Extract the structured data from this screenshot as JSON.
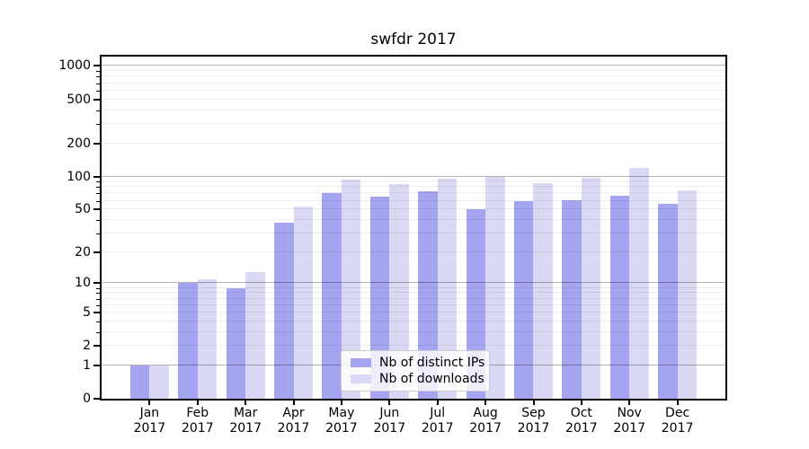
{
  "figure": {
    "title": "swfdr 2017",
    "background_color": "#ffffff"
  },
  "chart_data": {
    "type": "bar",
    "title": "swfdr 2017",
    "categories": [
      {
        "label": "Jan",
        "year": "2017"
      },
      {
        "label": "Feb",
        "year": "2017"
      },
      {
        "label": "Mar",
        "year": "2017"
      },
      {
        "label": "Apr",
        "year": "2017"
      },
      {
        "label": "May",
        "year": "2017"
      },
      {
        "label": "Jun",
        "year": "2017"
      },
      {
        "label": "Jul",
        "year": "2017"
      },
      {
        "label": "Aug",
        "year": "2017"
      },
      {
        "label": "Sep",
        "year": "2017"
      },
      {
        "label": "Oct",
        "year": "2017"
      },
      {
        "label": "Nov",
        "year": "2017"
      },
      {
        "label": "Dec",
        "year": "2017"
      }
    ],
    "series": [
      {
        "name": "Nb of distinct IPs",
        "color": "#a4a4f1",
        "values": [
          1,
          10,
          9,
          38,
          70,
          65,
          73,
          50,
          60,
          61,
          67,
          56
        ]
      },
      {
        "name": "Nb of downloads",
        "color": "#d9d9f6",
        "values": [
          1,
          11,
          13,
          53,
          93,
          85,
          95,
          100,
          87,
          97,
          119,
          75
        ]
      }
    ],
    "yscale": "log10(value+1)",
    "ylim_approx": [
      0,
      1250
    ],
    "yticks": [
      0,
      1,
      2,
      5,
      10,
      20,
      50,
      100,
      200,
      500,
      1000
    ],
    "grid": {
      "on": true,
      "major_values": [
        1,
        10,
        100,
        1000
      ],
      "minor_values": [
        2,
        3,
        4,
        5,
        6,
        7,
        8,
        9,
        20,
        30,
        40,
        50,
        60,
        70,
        80,
        90,
        200,
        300,
        400,
        500,
        600,
        700,
        800,
        900
      ],
      "major_color": "#b2b2b2",
      "minor_color": "#ededed"
    },
    "legend": {
      "position": "bottom-center",
      "entries": [
        "Nb of distinct IPs",
        "Nb of downloads"
      ]
    }
  }
}
